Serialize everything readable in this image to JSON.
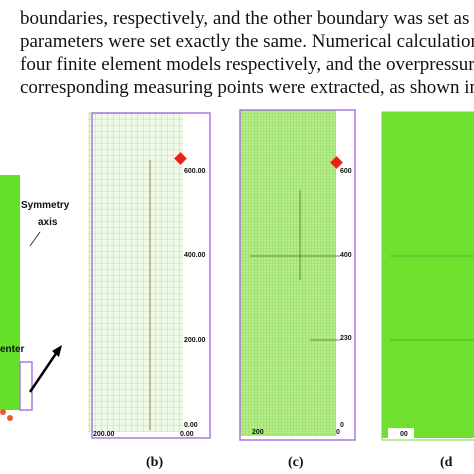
{
  "paragraph": {
    "lines": [
      "boundaries, respectively, and the other boundary was set as a",
      "parameters were set exactly the same.  Numerical calculation",
      "four finite element models respectively, and the overpressure",
      "corresponding measuring points were extracted, as shown in F"
    ]
  },
  "panel_a": {
    "annotation_1": "Symmetry",
    "annotation_2": "axis",
    "annotation_3": "enter"
  },
  "panel_b": {
    "y_labels": [
      "600.00",
      "400.00",
      "200.00",
      "0.00"
    ],
    "x_labels": [
      "200.00",
      "0.00"
    ],
    "caption": "(b)"
  },
  "panel_c": {
    "y_labels": [
      "600",
      "400",
      "230",
      "0"
    ],
    "x_labels": [
      "200",
      "0"
    ],
    "caption": "(c)"
  },
  "panel_d": {
    "x_labels": [
      "00"
    ],
    "caption": "(d"
  }
}
